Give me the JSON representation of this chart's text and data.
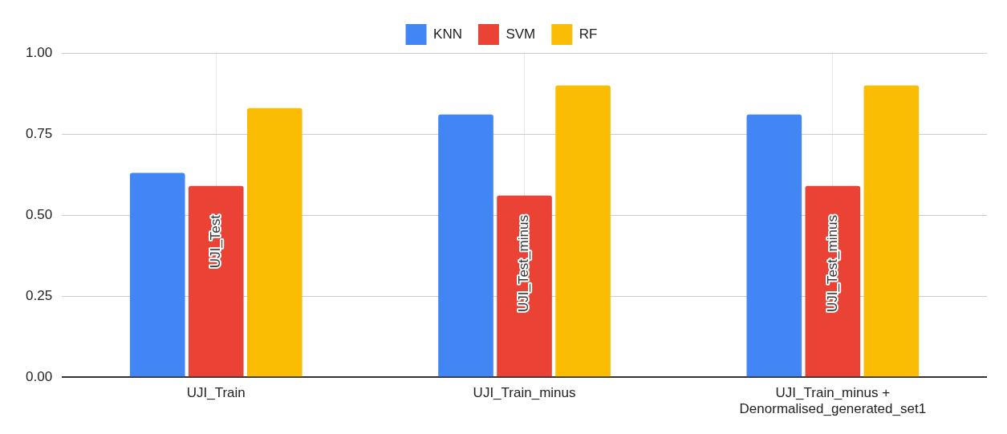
{
  "chart_data": {
    "type": "bar",
    "categories": [
      "UJI_Train",
      "UJI_Train_minus",
      "UJI_Train_minus + Denormalised_generated_set1"
    ],
    "series": [
      {
        "name": "KNN",
        "color": "#4285f4",
        "values": [
          0.63,
          0.81,
          0.81
        ]
      },
      {
        "name": "SVM",
        "color": "#ea4335",
        "values": [
          0.59,
          0.56,
          0.59
        ]
      },
      {
        "name": "RF",
        "color": "#fbbc04",
        "values": [
          0.83,
          0.9,
          0.9
        ]
      }
    ],
    "ylim": [
      0,
      1
    ],
    "yticks": [
      {
        "value": 0,
        "label": "0.00"
      },
      {
        "value": 0.25,
        "label": "0.25"
      },
      {
        "value": 0.5,
        "label": "0.50"
      },
      {
        "value": 0.75,
        "label": "0.75"
      },
      {
        "value": 1,
        "label": "1.00"
      }
    ],
    "grid": true,
    "legend": "top",
    "annotations": [
      "UJI_Test",
      "UJI_Test_minus",
      "UJI_Test_minus"
    ]
  }
}
